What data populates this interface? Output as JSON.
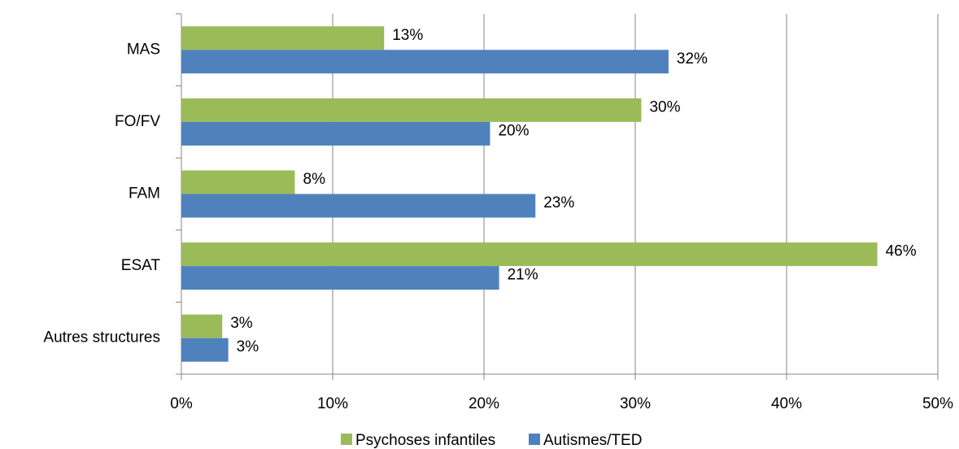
{
  "chart_data": {
    "type": "bar",
    "orientation": "horizontal",
    "categories": [
      "MAS",
      "FO/FV",
      "FAM",
      "ESAT",
      "Autres structures"
    ],
    "series": [
      {
        "name": "Psychoses infantiles",
        "color": "#9bbb59",
        "values": [
          13.4,
          30.4,
          7.5,
          46.0,
          2.7
        ],
        "value_labels": [
          "13%",
          "30%",
          "8%",
          "46%",
          "3%"
        ]
      },
      {
        "name": "Autismes/TED",
        "color": "#4f81bd",
        "values": [
          32.2,
          20.4,
          23.4,
          21.0,
          3.1
        ],
        "value_labels": [
          "32%",
          "20%",
          "23%",
          "21%",
          "3%"
        ]
      }
    ],
    "xlim": [
      0,
      50
    ],
    "xticks": [
      {
        "value": 0,
        "label": "0%"
      },
      {
        "value": 10,
        "label": "10%"
      },
      {
        "value": 20,
        "label": "20%"
      },
      {
        "value": 30,
        "label": "30%"
      },
      {
        "value": 40,
        "label": "40%"
      },
      {
        "value": 50,
        "label": "50%"
      }
    ],
    "grid": true,
    "legend": "bottom"
  }
}
